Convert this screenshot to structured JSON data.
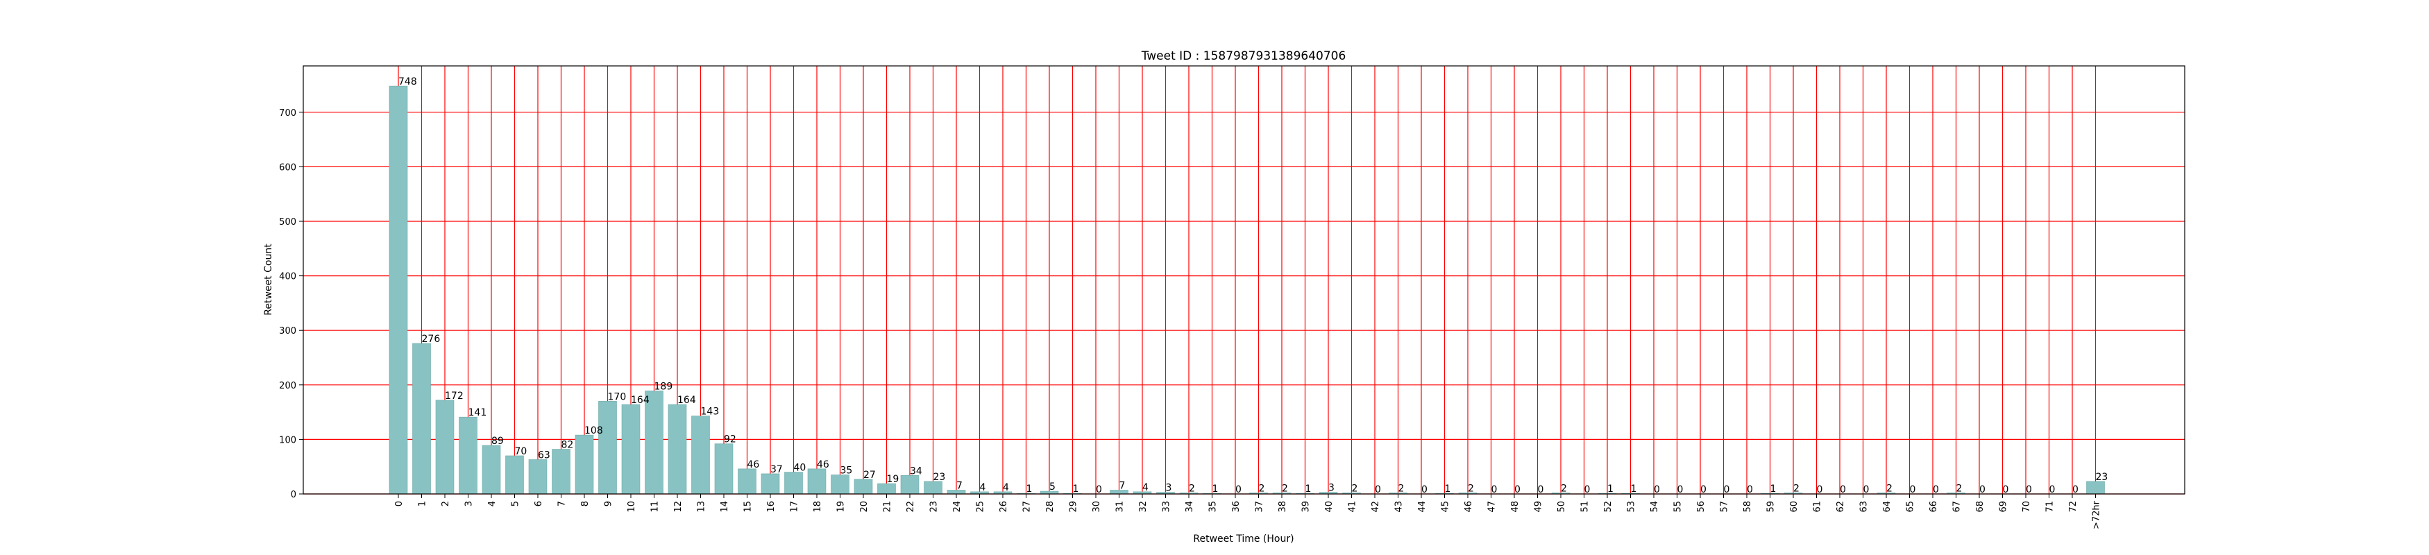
{
  "chart_data": {
    "type": "bar",
    "title": "Tweet ID : 1587987931389640706",
    "xlabel": "Retweet Time (Hour)",
    "ylabel": "Retweet Count",
    "ylim": [
      0,
      785
    ],
    "yticks": [
      0,
      100,
      200,
      300,
      400,
      500,
      600,
      700
    ],
    "grid": true,
    "grid_color": "#ff0000",
    "bar_color": "#88c2c2",
    "bar_edge_color": "#6fa9a9",
    "categories": [
      "0",
      "1",
      "2",
      "3",
      "4",
      "5",
      "6",
      "7",
      "8",
      "9",
      "10",
      "11",
      "12",
      "13",
      "14",
      "15",
      "16",
      "17",
      "18",
      "19",
      "20",
      "21",
      "22",
      "23",
      "24",
      "25",
      "26",
      "27",
      "28",
      "29",
      "30",
      "31",
      "32",
      "33",
      "34",
      "35",
      "36",
      "37",
      "38",
      "39",
      "40",
      "41",
      "42",
      "43",
      "44",
      "45",
      "46",
      "47",
      "48",
      "49",
      "50",
      "51",
      "52",
      "53",
      "54",
      "55",
      "56",
      "57",
      "58",
      "59",
      "60",
      "61",
      "62",
      "63",
      "64",
      "65",
      "66",
      "67",
      "68",
      "69",
      "70",
      "71",
      "72",
      ">72hr"
    ],
    "values": [
      748,
      276,
      172,
      141,
      89,
      70,
      63,
      82,
      108,
      170,
      164,
      189,
      164,
      143,
      92,
      46,
      37,
      40,
      46,
      35,
      27,
      19,
      34,
      23,
      7,
      4,
      4,
      1,
      5,
      1,
      0,
      7,
      4,
      3,
      2,
      1,
      0,
      2,
      2,
      1,
      3,
      2,
      0,
      2,
      0,
      1,
      2,
      0,
      0,
      0,
      2,
      0,
      1,
      1,
      0,
      0,
      0,
      0,
      0,
      1,
      2,
      0,
      0,
      0,
      2,
      0,
      0,
      2,
      0,
      0,
      0,
      0,
      0,
      23
    ]
  }
}
